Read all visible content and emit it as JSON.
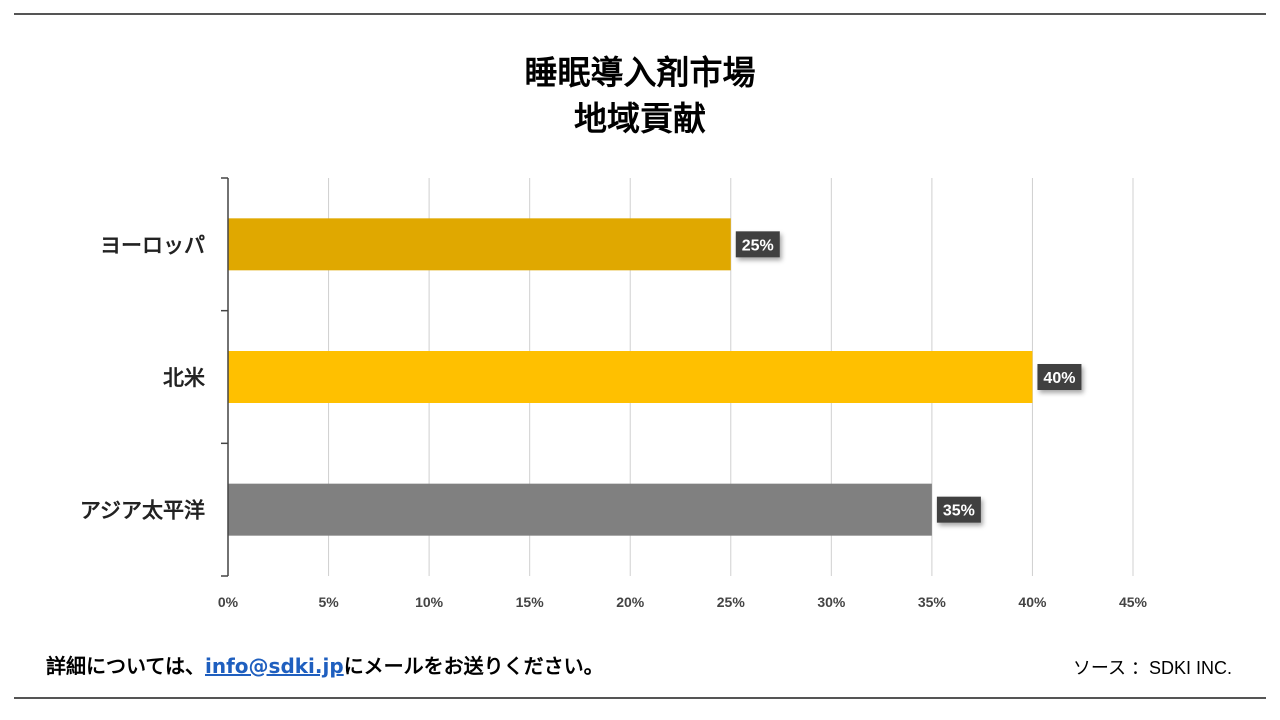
{
  "chart_data": {
    "type": "bar",
    "orientation": "horizontal",
    "title": [
      "睡眠導入剤市場",
      "地域貢献"
    ],
    "categories": [
      "ヨーロッパ",
      "北米",
      "アジア太平洋"
    ],
    "values": [
      25,
      40,
      35
    ],
    "value_labels": [
      "25%",
      "40%",
      "35%"
    ],
    "colors": [
      "#E0A800",
      "#FFC000",
      "#808080"
    ],
    "xlim": [
      0,
      45
    ],
    "xticks": [
      "0%",
      "5%",
      "10%",
      "15%",
      "20%",
      "25%",
      "30%",
      "35%",
      "40%",
      "45%"
    ],
    "grid": true,
    "legend": "none"
  },
  "footer": {
    "left_prefix": "詳細については、",
    "left_link": "info@sdki.jp",
    "left_suffix": "にメールをお送りください。",
    "source": "ソース ：SDKI INC."
  }
}
